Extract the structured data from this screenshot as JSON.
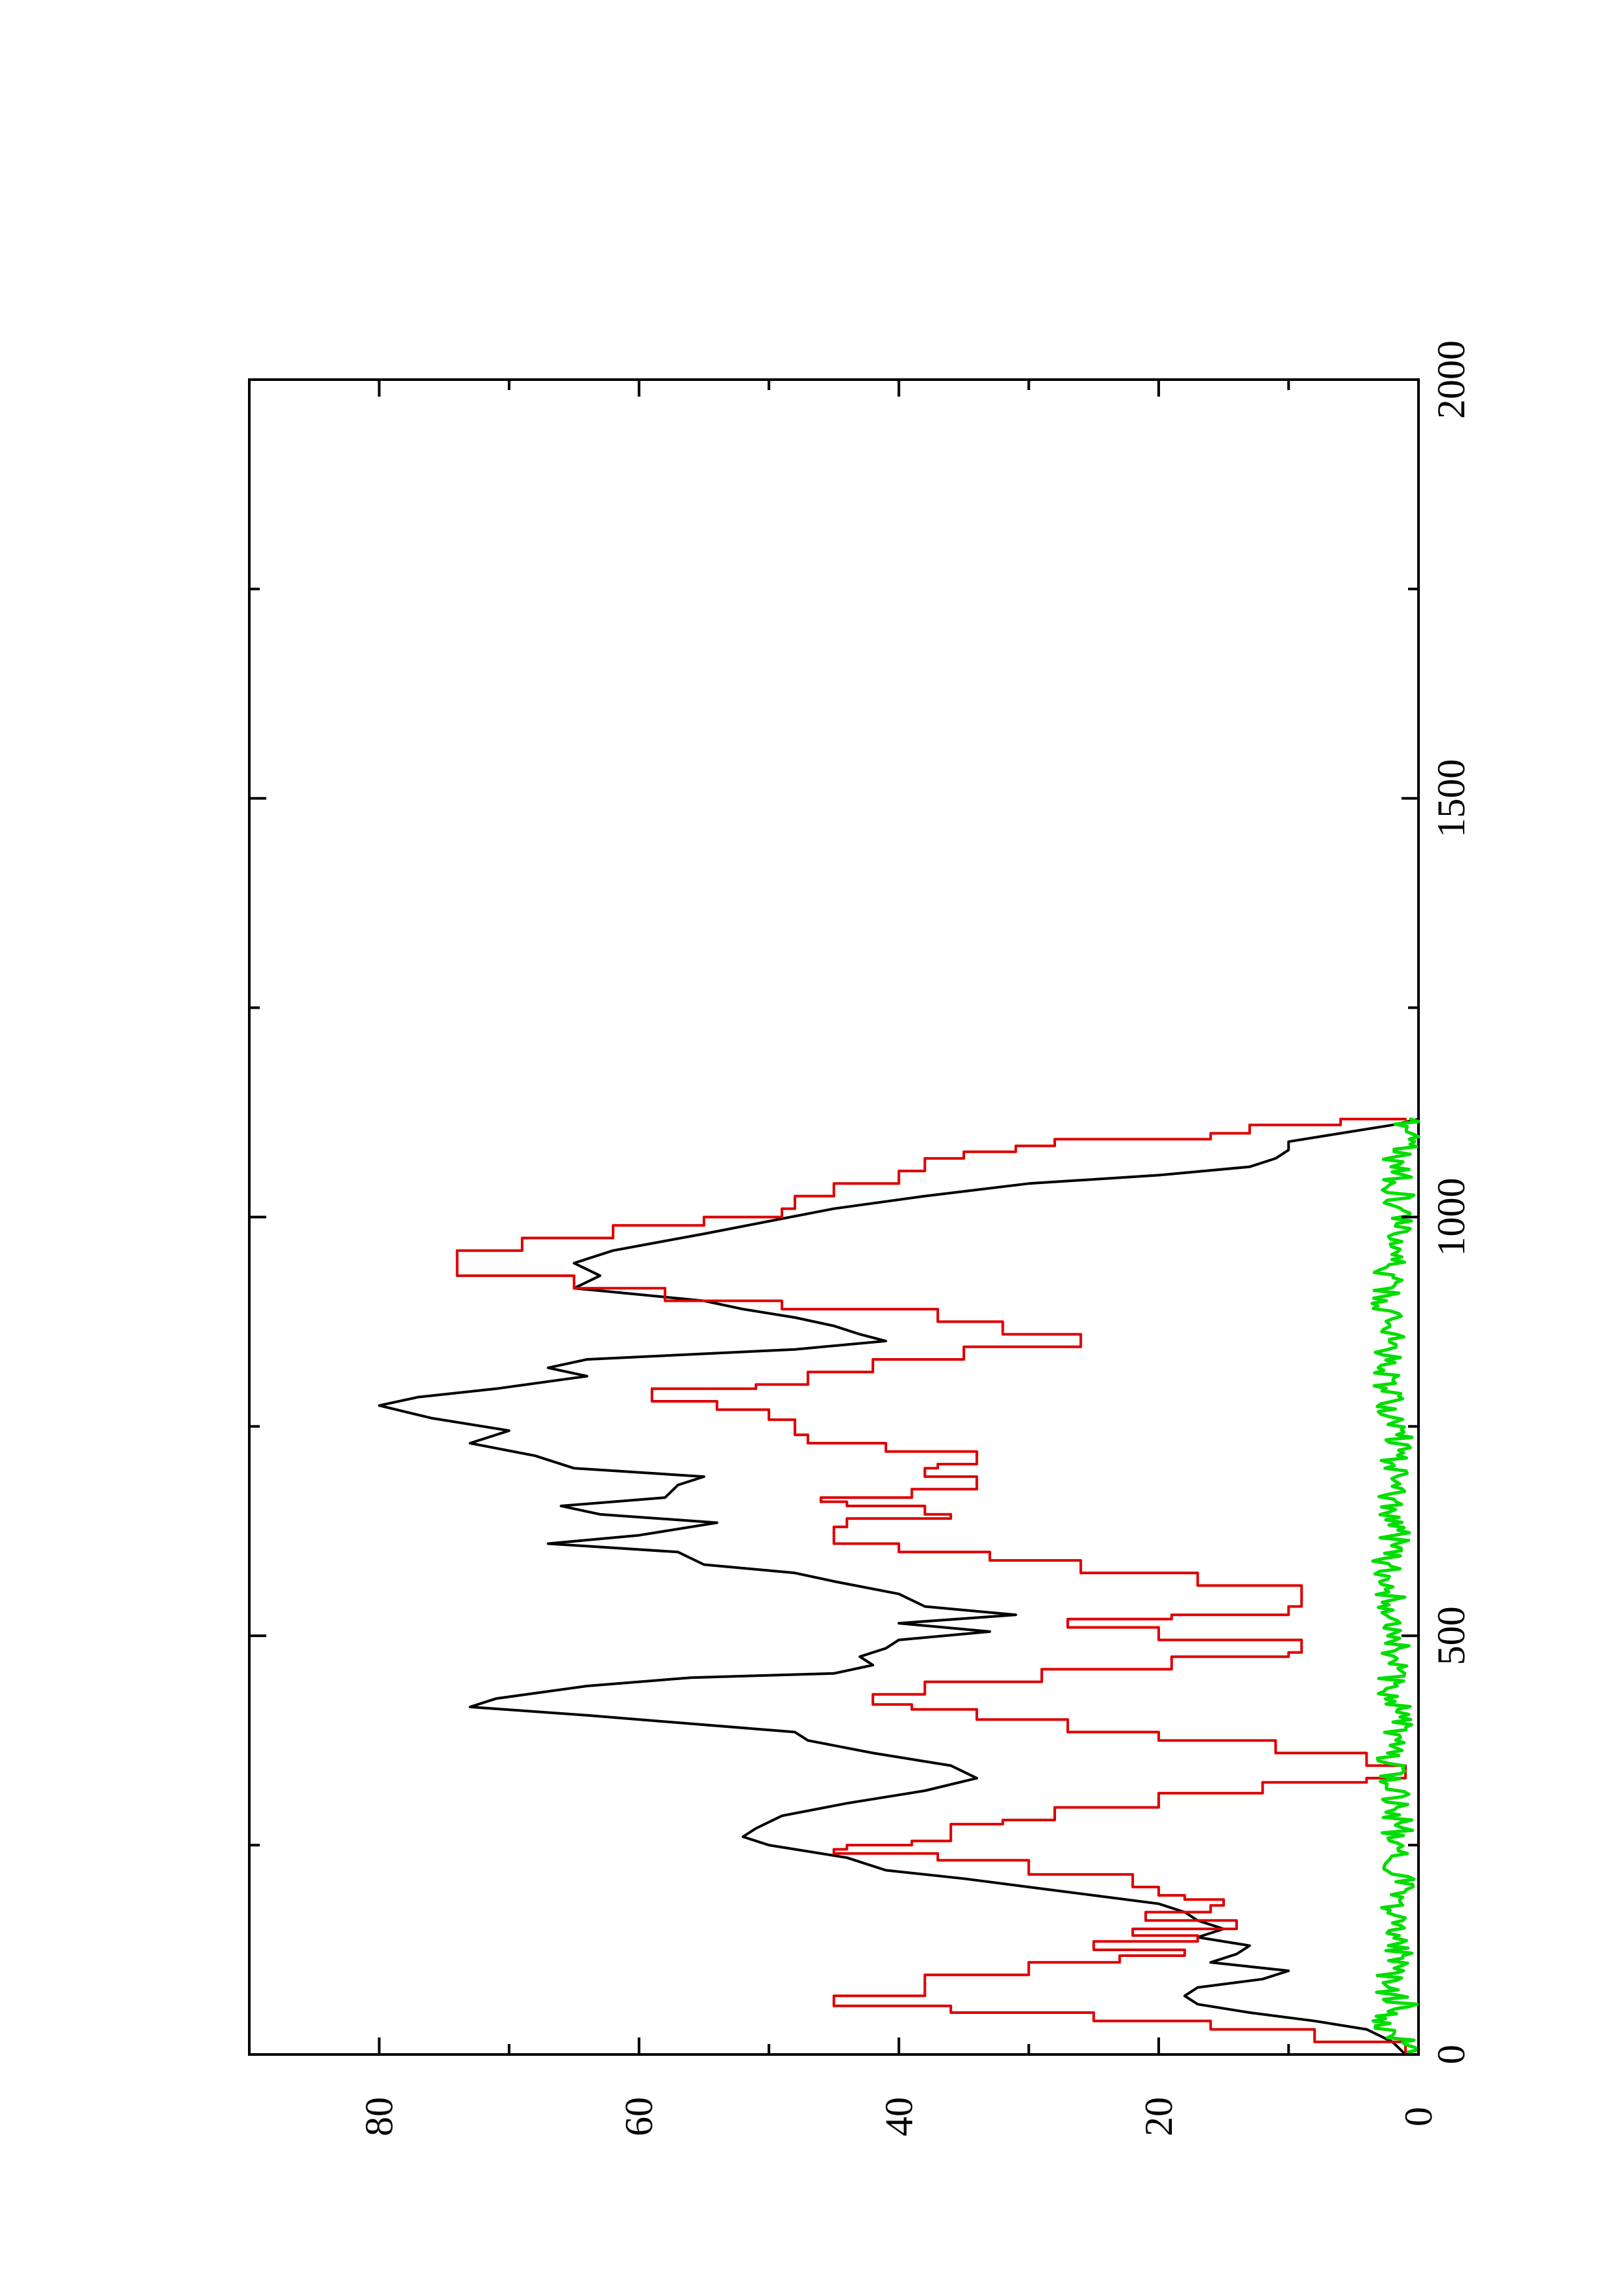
{
  "chart_data": {
    "type": "line",
    "orientation": "rotated-90-clockwise",
    "title": "",
    "xlabel": "",
    "ylabel": "",
    "xlim": [
      0,
      2000
    ],
    "ylim": [
      0,
      90
    ],
    "grid": false,
    "legend": "none",
    "x_ticks": [
      0,
      500,
      1000,
      1500,
      2000
    ],
    "x_tick_labels": [
      "0",
      "500",
      "1000",
      "1500",
      "2000"
    ],
    "x_minor_ticks": [
      250,
      750,
      1250,
      1750
    ],
    "y_ticks": [
      0,
      20,
      40,
      60,
      80
    ],
    "y_tick_labels": [
      "0",
      "20",
      "40",
      "60",
      "80"
    ],
    "y_minor_ticks": [
      10,
      30,
      50,
      70
    ],
    "series": [
      {
        "color": "#000000",
        "style": "smooth",
        "points": [
          [
            0,
            1
          ],
          [
            15,
            2
          ],
          [
            30,
            4
          ],
          [
            40,
            8
          ],
          [
            50,
            13
          ],
          [
            60,
            17
          ],
          [
            70,
            18
          ],
          [
            80,
            17
          ],
          [
            90,
            12
          ],
          [
            100,
            10
          ],
          [
            110,
            16
          ],
          [
            120,
            14
          ],
          [
            130,
            13
          ],
          [
            140,
            17
          ],
          [
            150,
            15
          ],
          [
            160,
            17
          ],
          [
            170,
            18
          ],
          [
            180,
            20
          ],
          [
            190,
            25
          ],
          [
            200,
            30
          ],
          [
            210,
            35
          ],
          [
            220,
            41
          ],
          [
            235,
            44
          ],
          [
            250,
            50
          ],
          [
            260,
            52
          ],
          [
            270,
            51
          ],
          [
            285,
            49
          ],
          [
            300,
            44
          ],
          [
            315,
            38
          ],
          [
            330,
            34
          ],
          [
            345,
            36
          ],
          [
            360,
            42
          ],
          [
            375,
            47
          ],
          [
            385,
            48
          ],
          [
            395,
            56
          ],
          [
            405,
            64
          ],
          [
            415,
            73
          ],
          [
            425,
            71
          ],
          [
            440,
            64
          ],
          [
            450,
            56
          ],
          [
            455,
            45
          ],
          [
            465,
            42
          ],
          [
            475,
            43
          ],
          [
            485,
            41
          ],
          [
            495,
            40
          ],
          [
            505,
            33
          ],
          [
            515,
            40
          ],
          [
            525,
            31
          ],
          [
            535,
            38
          ],
          [
            550,
            40
          ],
          [
            565,
            45
          ],
          [
            575,
            48
          ],
          [
            585,
            55
          ],
          [
            600,
            57
          ],
          [
            610,
            67
          ],
          [
            620,
            60
          ],
          [
            635,
            54
          ],
          [
            645,
            63
          ],
          [
            655,
            66
          ],
          [
            665,
            58
          ],
          [
            680,
            57
          ],
          [
            690,
            55
          ],
          [
            700,
            65
          ],
          [
            715,
            68
          ],
          [
            730,
            73
          ],
          [
            745,
            70
          ],
          [
            760,
            76
          ],
          [
            775,
            80
          ],
          [
            785,
            77
          ],
          [
            795,
            71
          ],
          [
            810,
            64
          ],
          [
            820,
            67
          ],
          [
            830,
            64
          ],
          [
            842,
            48
          ],
          [
            852,
            41
          ],
          [
            860,
            43
          ],
          [
            870,
            45
          ],
          [
            880,
            48
          ],
          [
            890,
            52
          ],
          [
            900,
            55
          ],
          [
            915,
            65
          ],
          [
            930,
            63
          ],
          [
            945,
            65
          ],
          [
            960,
            62
          ],
          [
            980,
            55
          ],
          [
            995,
            50
          ],
          [
            1010,
            45
          ],
          [
            1025,
            38
          ],
          [
            1040,
            30
          ],
          [
            1050,
            20
          ],
          [
            1060,
            13
          ],
          [
            1070,
            11
          ],
          [
            1080,
            10
          ],
          [
            1090,
            10
          ],
          [
            1100,
            6
          ],
          [
            1110,
            2
          ],
          [
            1117,
            0
          ]
        ]
      },
      {
        "color": "#dd0000",
        "style": "step",
        "points": [
          [
            0,
            1
          ],
          [
            10,
            1
          ],
          [
            15,
            8
          ],
          [
            25,
            8
          ],
          [
            30,
            16
          ],
          [
            38,
            16
          ],
          [
            40,
            25
          ],
          [
            45,
            25
          ],
          [
            50,
            36
          ],
          [
            55,
            36
          ],
          [
            58,
            45
          ],
          [
            62,
            45
          ],
          [
            70,
            38
          ],
          [
            80,
            38
          ],
          [
            95,
            30
          ],
          [
            110,
            23
          ],
          [
            118,
            18
          ],
          [
            125,
            25
          ],
          [
            130,
            25
          ],
          [
            135,
            17
          ],
          [
            138,
            17
          ],
          [
            142,
            22
          ],
          [
            145,
            22
          ],
          [
            150,
            14
          ],
          [
            155,
            14
          ],
          [
            160,
            21
          ],
          [
            165,
            21
          ],
          [
            170,
            16
          ],
          [
            175,
            16
          ],
          [
            178,
            15
          ],
          [
            185,
            18
          ],
          [
            190,
            20
          ],
          [
            200,
            22
          ],
          [
            215,
            30
          ],
          [
            232,
            37
          ],
          [
            240,
            45
          ],
          [
            243,
            45
          ],
          [
            245,
            44
          ],
          [
            250,
            39
          ],
          [
            255,
            36
          ],
          [
            268,
            36
          ],
          [
            275,
            32
          ],
          [
            280,
            28
          ],
          [
            295,
            20
          ],
          [
            312,
            12
          ],
          [
            325,
            4
          ],
          [
            330,
            1
          ],
          [
            340,
            1
          ],
          [
            345,
            4
          ],
          [
            360,
            11
          ],
          [
            375,
            20
          ],
          [
            385,
            27
          ],
          [
            400,
            34
          ],
          [
            412,
            39
          ],
          [
            418,
            42
          ],
          [
            430,
            38
          ],
          [
            445,
            29
          ],
          [
            460,
            19
          ],
          [
            475,
            10
          ],
          [
            480,
            9
          ],
          [
            487,
            9
          ],
          [
            495,
            20
          ],
          [
            510,
            27
          ],
          [
            520,
            19
          ],
          [
            525,
            10
          ],
          [
            535,
            9
          ],
          [
            545,
            9
          ],
          [
            560,
            17
          ],
          [
            575,
            26
          ],
          [
            590,
            33
          ],
          [
            600,
            40
          ],
          [
            610,
            45
          ],
          [
            630,
            44
          ],
          [
            640,
            36
          ],
          [
            645,
            38
          ],
          [
            655,
            44
          ],
          [
            660,
            46
          ],
          [
            665,
            39
          ],
          [
            675,
            34
          ],
          [
            690,
            38
          ],
          [
            700,
            37
          ],
          [
            705,
            34
          ],
          [
            720,
            41
          ],
          [
            730,
            47
          ],
          [
            740,
            48
          ],
          [
            758,
            50
          ],
          [
            770,
            54
          ],
          [
            780,
            59
          ],
          [
            795,
            51
          ],
          [
            800,
            47
          ],
          [
            815,
            42
          ],
          [
            830,
            35
          ],
          [
            845,
            26
          ],
          [
            860,
            32
          ],
          [
            875,
            37
          ],
          [
            890,
            49
          ],
          [
            900,
            58
          ],
          [
            915,
            65
          ],
          [
            930,
            74
          ],
          [
            940,
            74
          ],
          [
            960,
            69
          ],
          [
            975,
            62
          ],
          [
            990,
            55
          ],
          [
            1000,
            49
          ],
          [
            1010,
            48
          ],
          [
            1025,
            45
          ],
          [
            1040,
            40
          ],
          [
            1055,
            38
          ],
          [
            1070,
            35
          ],
          [
            1078,
            31
          ],
          [
            1085,
            28
          ],
          [
            1093,
            16
          ],
          [
            1100,
            13
          ],
          [
            1110,
            6
          ],
          [
            1117,
            1
          ]
        ]
      },
      {
        "color": "#00dd00",
        "style": "noisy",
        "points": [
          [
            0,
            0.5
          ],
          [
            20,
            1.5
          ],
          [
            40,
            3.5
          ],
          [
            60,
            1.2
          ],
          [
            80,
            2.5
          ],
          [
            100,
            1.8
          ],
          [
            130,
            1.4
          ],
          [
            160,
            2.2
          ],
          [
            200,
            1.0
          ],
          [
            240,
            2.0
          ],
          [
            280,
            1.5
          ],
          [
            320,
            2.0
          ],
          [
            360,
            2.4
          ],
          [
            400,
            1.6
          ],
          [
            440,
            2.2
          ],
          [
            470,
            2.0
          ],
          [
            500,
            1.4
          ],
          [
            540,
            2.0
          ],
          [
            580,
            2.5
          ],
          [
            620,
            1.8
          ],
          [
            660,
            2.1
          ],
          [
            700,
            2.0
          ],
          [
            740,
            1.6
          ],
          [
            780,
            2.2
          ],
          [
            820,
            2.4
          ],
          [
            860,
            2.0
          ],
          [
            900,
            2.6
          ],
          [
            940,
            2.2
          ],
          [
            980,
            1.9
          ],
          [
            1020,
            1.5
          ],
          [
            1060,
            1.8
          ],
          [
            1090,
            1.2
          ],
          [
            1117,
            0.6
          ]
        ]
      }
    ]
  }
}
